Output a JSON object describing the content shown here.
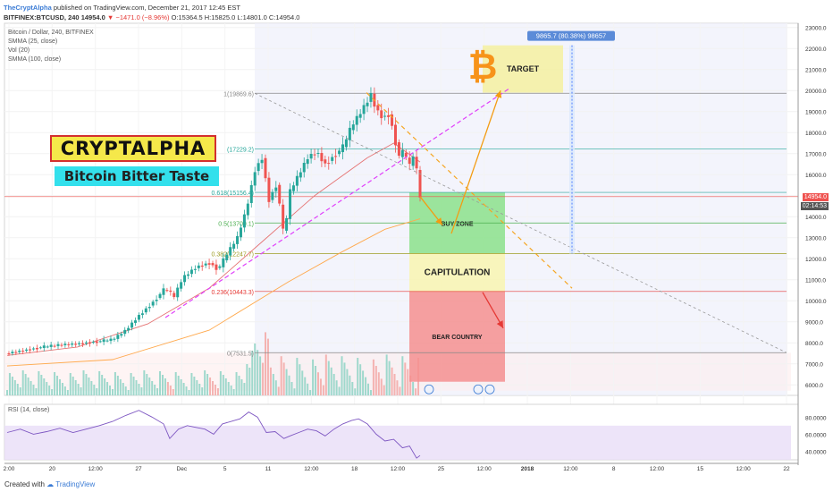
{
  "header": {
    "author": "TheCryptAlpha",
    "published": "published on TradingView.com, December 21, 2017 12:45 EST",
    "symbol": "BITFINEX:BTCUSD, 240",
    "last": "14954.0",
    "change": "−1471.0 (−8.96%)",
    "ohlc": "O:15364.5 H:15825.0 L:14801.0 C:14954.0"
  },
  "indicators": {
    "title": "Bitcoin / Dollar, 240, BITFINEX",
    "smma25": "SMMA (25, close)",
    "vol": "Vol (20)",
    "smma100": "SMMA (100, close)",
    "rsi": "RSI (14, close)"
  },
  "branding": {
    "name": "CRYPTALPHA",
    "subtitle": "Bitcoin Bitter Taste"
  },
  "footer": {
    "created": "Created with",
    "brand": "TradingView"
  },
  "colors": {
    "up": "#26a69a",
    "down": "#ef5350",
    "target_zone": "#f5f0a0",
    "buy_zone": "#8be08b",
    "capitulation_zone": "#f8f4b0",
    "bear_zone": "#f58f8f"
  },
  "chart_data": {
    "type": "candlestick",
    "instrument": "BTCUSD",
    "timeframe": "240",
    "y_axis_ticks": [
      "23000.0",
      "22000.0",
      "21000.0",
      "20000.0",
      "19000.0",
      "18000.0",
      "17000.0",
      "16000.0",
      "15000.0",
      "14000.0",
      "13000.0",
      "12000.0",
      "11000.0",
      "10000.0",
      "9000.0",
      "8000.0",
      "7000.0",
      "6000.0"
    ],
    "ylim": [
      5500,
      23200
    ],
    "x_axis_ticks": [
      "2:00",
      "20",
      "12:00",
      "27",
      "Dec",
      "5",
      "11",
      "12:00",
      "18",
      "12:00",
      "25",
      "12:00",
      "2018",
      "12:00",
      "8",
      "12:00",
      "15",
      "12:00",
      "22"
    ],
    "last_price": "14954.0",
    "countdown": "02:14:53",
    "price_path": [
      [
        0,
        7500
      ],
      [
        20,
        7650
      ],
      [
        40,
        7800
      ],
      [
        60,
        7900
      ],
      [
        80,
        7950
      ],
      [
        100,
        8050
      ],
      [
        120,
        8150
      ],
      [
        135,
        8600
      ],
      [
        150,
        9300
      ],
      [
        165,
        9900
      ],
      [
        180,
        10600
      ],
      [
        190,
        10200
      ],
      [
        200,
        11100
      ],
      [
        215,
        11600
      ],
      [
        230,
        11800
      ],
      [
        240,
        11500
      ],
      [
        250,
        12200
      ],
      [
        262,
        13000
      ],
      [
        272,
        14300
      ],
      [
        282,
        16200
      ],
      [
        290,
        16800
      ],
      [
        298,
        14800
      ],
      [
        307,
        15600
      ],
      [
        315,
        13000
      ],
      [
        322,
        15200
      ],
      [
        332,
        16000
      ],
      [
        342,
        16800
      ],
      [
        352,
        17100
      ],
      [
        362,
        16500
      ],
      [
        372,
        16900
      ],
      [
        382,
        17300
      ],
      [
        392,
        18300
      ],
      [
        400,
        18800
      ],
      [
        408,
        19350
      ],
      [
        414,
        19800
      ],
      [
        420,
        19100
      ],
      [
        428,
        18700
      ],
      [
        435,
        18900
      ],
      [
        441,
        17700
      ],
      [
        446,
        16900
      ],
      [
        452,
        17100
      ],
      [
        458,
        16400
      ],
      [
        462,
        16900
      ],
      [
        466,
        16200
      ],
      [
        470,
        14954
      ]
    ],
    "smma25": [
      [
        0,
        7400
      ],
      [
        80,
        7800
      ],
      [
        160,
        8900
      ],
      [
        230,
        10600
      ],
      [
        290,
        12800
      ],
      [
        350,
        15000
      ],
      [
        410,
        16800
      ],
      [
        440,
        17500
      ],
      [
        470,
        16600
      ]
    ],
    "smma100": [
      [
        0,
        6900
      ],
      [
        120,
        7200
      ],
      [
        230,
        8600
      ],
      [
        320,
        10900
      ],
      [
        380,
        12300
      ],
      [
        430,
        13400
      ],
      [
        470,
        13900
      ]
    ],
    "fibonacci": [
      {
        "label": "1(19869.6)",
        "value": 19869.6
      },
      {
        "label": "(17229.2)",
        "value": 17229.2
      },
      {
        "label": "0.618(15156.4)",
        "value": 15156.4
      },
      {
        "label": "0.5(13700.1)",
        "value": 13700.1
      },
      {
        "label": "0.382(12247.7)",
        "value": 12247.7
      },
      {
        "label": "0.236(10443.3)",
        "value": 10443.3
      },
      {
        "label": "0(7531.5)",
        "value": 7531.5
      }
    ],
    "zones": [
      {
        "name": "TARGET",
        "low": 19900,
        "high": 22150
      },
      {
        "name": "BUY ZONE",
        "low": 12250,
        "high": 15150
      },
      {
        "name": "CAPITULATION",
        "low": 10450,
        "high": 12250
      },
      {
        "name": "BEAR COUNTRY",
        "low": 6150,
        "high": 10450
      }
    ],
    "measure": {
      "label": "9865.7 (80.38%) 98657",
      "from": 12250,
      "to": 22150
    },
    "rsi": {
      "ticks": [
        "80.0000",
        "60.0000",
        "40.0000"
      ],
      "ylim": [
        30,
        95
      ],
      "band": [
        30,
        70
      ],
      "values": [
        [
          0,
          62
        ],
        [
          15,
          66
        ],
        [
          30,
          60
        ],
        [
          45,
          63
        ],
        [
          60,
          67
        ],
        [
          75,
          62
        ],
        [
          90,
          66
        ],
        [
          105,
          70
        ],
        [
          120,
          75
        ],
        [
          135,
          82
        ],
        [
          150,
          88
        ],
        [
          165,
          80
        ],
        [
          178,
          72
        ],
        [
          185,
          55
        ],
        [
          195,
          66
        ],
        [
          205,
          70
        ],
        [
          215,
          68
        ],
        [
          225,
          66
        ],
        [
          235,
          60
        ],
        [
          245,
          72
        ],
        [
          255,
          75
        ],
        [
          265,
          78
        ],
        [
          275,
          86
        ],
        [
          285,
          80
        ],
        [
          295,
          62
        ],
        [
          305,
          63
        ],
        [
          315,
          55
        ],
        [
          322,
          58
        ],
        [
          332,
          62
        ],
        [
          342,
          66
        ],
        [
          352,
          64
        ],
        [
          362,
          58
        ],
        [
          372,
          66
        ],
        [
          382,
          72
        ],
        [
          392,
          76
        ],
        [
          400,
          78
        ],
        [
          410,
          72
        ],
        [
          420,
          60
        ],
        [
          430,
          52
        ],
        [
          440,
          54
        ],
        [
          450,
          44
        ],
        [
          458,
          46
        ],
        [
          466,
          32
        ],
        [
          470,
          35
        ]
      ]
    }
  }
}
